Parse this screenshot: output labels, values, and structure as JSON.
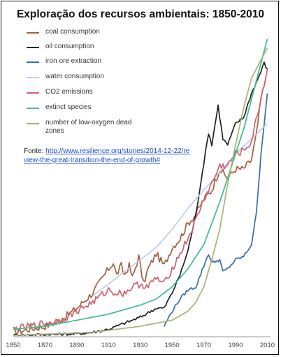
{
  "chart_data": {
    "type": "line",
    "title": "Exploração dos recursos ambientais: 1850-2010",
    "xlabel": "",
    "ylabel": "",
    "xlim": [
      1850,
      2012
    ],
    "ylim": [
      0,
      100
    ],
    "x_ticks": [
      "1850",
      "1870",
      "1890",
      "1910",
      "1930",
      "1950",
      "1970",
      "1990",
      "2010"
    ],
    "grid": false,
    "legend_position": "top-left",
    "series": [
      {
        "name": "coal consumption",
        "color": "#a0603c",
        "points": [
          [
            1850,
            1
          ],
          [
            1860,
            2
          ],
          [
            1870,
            3
          ],
          [
            1880,
            5
          ],
          [
            1890,
            9
          ],
          [
            1900,
            14
          ],
          [
            1905,
            18
          ],
          [
            1910,
            22
          ],
          [
            1913,
            24
          ],
          [
            1915,
            20
          ],
          [
            1918,
            23
          ],
          [
            1920,
            20
          ],
          [
            1923,
            23
          ],
          [
            1925,
            19
          ],
          [
            1929,
            26
          ],
          [
            1932,
            17
          ],
          [
            1935,
            22
          ],
          [
            1940,
            27
          ],
          [
            1945,
            23
          ],
          [
            1950,
            29
          ],
          [
            1955,
            32
          ],
          [
            1960,
            37
          ],
          [
            1965,
            40
          ],
          [
            1970,
            45
          ],
          [
            1975,
            48
          ],
          [
            1980,
            55
          ],
          [
            1985,
            52
          ],
          [
            1990,
            55
          ],
          [
            1995,
            55
          ],
          [
            2000,
            58
          ],
          [
            2003,
            66
          ],
          [
            2006,
            78
          ],
          [
            2009,
            85
          ]
        ]
      },
      {
        "name": "oil consumption",
        "color": "#222222",
        "points": [
          [
            1850,
            0
          ],
          [
            1890,
            0.5
          ],
          [
            1900,
            1
          ],
          [
            1910,
            2
          ],
          [
            1920,
            4
          ],
          [
            1930,
            6
          ],
          [
            1940,
            9
          ],
          [
            1945,
            9
          ],
          [
            1950,
            14
          ],
          [
            1955,
            20
          ],
          [
            1960,
            28
          ],
          [
            1965,
            40
          ],
          [
            1970,
            57
          ],
          [
            1973,
            67
          ],
          [
            1975,
            63
          ],
          [
            1979,
            76
          ],
          [
            1982,
            65
          ],
          [
            1985,
            63
          ],
          [
            1990,
            70
          ],
          [
            1995,
            72
          ],
          [
            2000,
            80
          ],
          [
            2005,
            86
          ],
          [
            2008,
            90
          ],
          [
            2010,
            88
          ]
        ]
      },
      {
        "name": "iron ore extraction",
        "color": "#3c6ca0",
        "points": [
          [
            1945,
            3
          ],
          [
            1950,
            8
          ],
          [
            1955,
            12
          ],
          [
            1960,
            15
          ],
          [
            1965,
            16
          ],
          [
            1970,
            23
          ],
          [
            1973,
            27
          ],
          [
            1975,
            24
          ],
          [
            1980,
            25
          ],
          [
            1982,
            21
          ],
          [
            1985,
            22
          ],
          [
            1990,
            25
          ],
          [
            1995,
            26
          ],
          [
            2000,
            30
          ],
          [
            2003,
            40
          ],
          [
            2006,
            60
          ],
          [
            2010,
            80
          ]
        ]
      },
      {
        "name": "water consumption",
        "color": "#b8cce8",
        "points": [
          [
            1900,
            13
          ],
          [
            1910,
            17
          ],
          [
            1920,
            21
          ],
          [
            1930,
            25
          ],
          [
            1940,
            29
          ],
          [
            1950,
            35
          ],
          [
            1960,
            42
          ],
          [
            1970,
            48
          ],
          [
            1980,
            54
          ],
          [
            1990,
            60
          ],
          [
            2000,
            65
          ],
          [
            2010,
            70
          ]
        ]
      },
      {
        "name": "CO2 emissions",
        "color": "#d06070",
        "points": [
          [
            1850,
            2
          ],
          [
            1860,
            3
          ],
          [
            1870,
            4
          ],
          [
            1880,
            5
          ],
          [
            1890,
            8
          ],
          [
            1900,
            11
          ],
          [
            1910,
            15
          ],
          [
            1915,
            14
          ],
          [
            1920,
            14
          ],
          [
            1925,
            16
          ],
          [
            1930,
            17
          ],
          [
            1935,
            16
          ],
          [
            1940,
            19
          ],
          [
            1945,
            17
          ],
          [
            1950,
            22
          ],
          [
            1955,
            27
          ],
          [
            1960,
            32
          ],
          [
            1965,
            38
          ],
          [
            1970,
            45
          ],
          [
            1975,
            50
          ],
          [
            1980,
            56
          ],
          [
            1985,
            56
          ],
          [
            1990,
            60
          ],
          [
            1995,
            61
          ],
          [
            2000,
            64
          ],
          [
            2005,
            76
          ],
          [
            2010,
            88
          ]
        ]
      },
      {
        "name": "extinct species",
        "color": "#3cbc8c",
        "points": [
          [
            1850,
            2
          ],
          [
            1870,
            3
          ],
          [
            1890,
            5
          ],
          [
            1910,
            7
          ],
          [
            1930,
            10
          ],
          [
            1940,
            12
          ],
          [
            1950,
            16
          ],
          [
            1960,
            22
          ],
          [
            1970,
            30
          ],
          [
            1975,
            37
          ],
          [
            1980,
            44
          ],
          [
            1985,
            52
          ],
          [
            1990,
            60
          ],
          [
            1995,
            68
          ],
          [
            2000,
            78
          ],
          [
            2005,
            88
          ],
          [
            2010,
            98
          ]
        ]
      },
      {
        "name": "number of low-oxygen dead zones",
        "color": "#a8b07a",
        "points": [
          [
            1850,
            0
          ],
          [
            1900,
            1
          ],
          [
            1930,
            3
          ],
          [
            1950,
            5
          ],
          [
            1960,
            8
          ],
          [
            1965,
            11
          ],
          [
            1970,
            16
          ],
          [
            1975,
            25
          ],
          [
            1980,
            35
          ],
          [
            1985,
            50
          ],
          [
            1990,
            63
          ],
          [
            1995,
            75
          ],
          [
            2000,
            85
          ],
          [
            2005,
            90
          ],
          [
            2008,
            93
          ],
          [
            2010,
            95
          ]
        ]
      }
    ]
  },
  "source": {
    "label": "Fonte: ",
    "link": "http://www.resilience.org/stories/2014-12-22/review-the-great-transition-the-end-of-growth#"
  }
}
